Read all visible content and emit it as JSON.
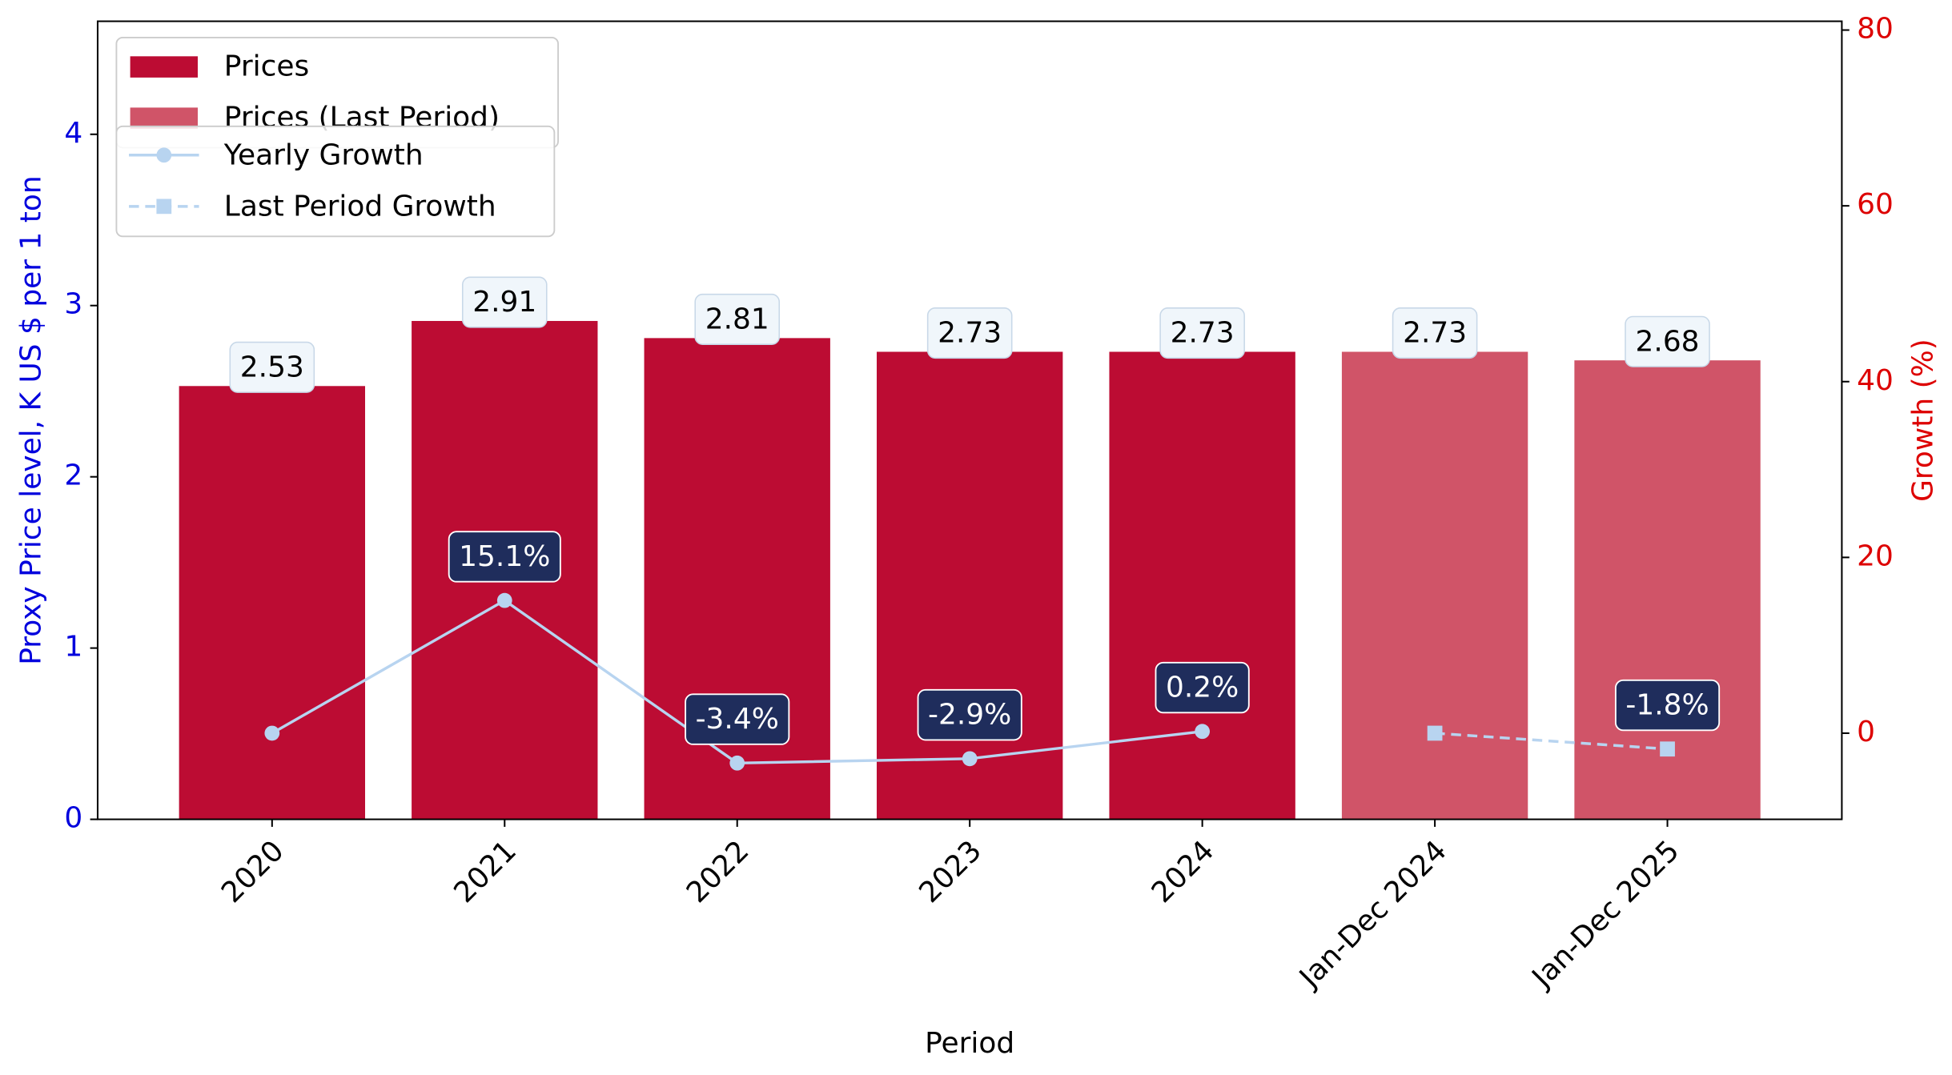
{
  "chart_data": {
    "type": "bar",
    "xlabel": "Period",
    "ylabel": "Proxy Price level, K US $ per 1 ton",
    "y2label": "Growth (%)",
    "categories": [
      "2020",
      "2021",
      "2022",
      "2023",
      "2024",
      "Jan-Dec 2024",
      "Jan-Dec 2025"
    ],
    "series": [
      {
        "name": "Prices",
        "type": "bar",
        "color": "#bc0c33",
        "values": [
          2.53,
          2.91,
          2.81,
          2.73,
          2.73,
          null,
          null
        ]
      },
      {
        "name": "Prices (Last Period)",
        "type": "bar",
        "color": "#d05468",
        "values": [
          null,
          null,
          null,
          null,
          null,
          2.73,
          2.68
        ]
      },
      {
        "name": "Yearly Growth",
        "type": "line",
        "axis": "y2",
        "color": "#b8d4f0",
        "marker": "circle",
        "dashed": false,
        "values": [
          0,
          15.1,
          -3.4,
          -2.9,
          0.2,
          null,
          null
        ],
        "value_labels": [
          null,
          "15.1%",
          "-3.4%",
          "-2.9%",
          "0.2%",
          null,
          null
        ]
      },
      {
        "name": "Last Period Growth",
        "type": "line",
        "axis": "y2",
        "color": "#b8d4f0",
        "marker": "square",
        "dashed": true,
        "values": [
          null,
          null,
          null,
          null,
          null,
          0,
          -1.8
        ],
        "value_labels": [
          null,
          null,
          null,
          null,
          null,
          null,
          "-1.8%"
        ]
      }
    ],
    "ylim": [
      0,
      4.66
    ],
    "yticks": [
      0,
      1,
      2,
      3,
      4
    ],
    "y2lim": [
      -9.8,
      81
    ],
    "y2ticks": [
      0,
      20,
      40,
      60,
      80
    ],
    "grid": false
  }
}
